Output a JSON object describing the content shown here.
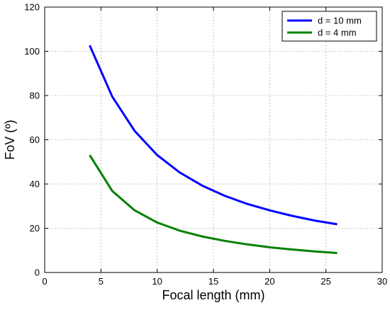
{
  "chart_data": {
    "type": "line",
    "title": "",
    "xlabel": "Focal length (mm)",
    "ylabel": "FoV (º)",
    "xlim": [
      0,
      30
    ],
    "ylim": [
      0,
      120
    ],
    "xticks": [
      0,
      5,
      10,
      15,
      20,
      25,
      30
    ],
    "yticks": [
      0,
      20,
      40,
      60,
      80,
      100,
      120
    ],
    "grid": true,
    "legend_position": "top-right",
    "series": [
      {
        "name": "d = 10 mm",
        "color": "#0000ff",
        "x": [
          4,
          6,
          8,
          10,
          12,
          14,
          16,
          18,
          20,
          22,
          24,
          26
        ],
        "y": [
          102.7,
          79.6,
          64.0,
          53.1,
          45.2,
          39.3,
          34.7,
          31.0,
          28.1,
          25.6,
          23.5,
          21.8
        ]
      },
      {
        "name": "d = 4 mm",
        "color": "#008000",
        "x": [
          4,
          6,
          8,
          10,
          12,
          14,
          16,
          18,
          20,
          22,
          24,
          26
        ],
        "y": [
          53.1,
          36.9,
          28.1,
          22.6,
          18.9,
          16.3,
          14.3,
          12.7,
          11.4,
          10.4,
          9.5,
          8.8
        ]
      }
    ]
  }
}
